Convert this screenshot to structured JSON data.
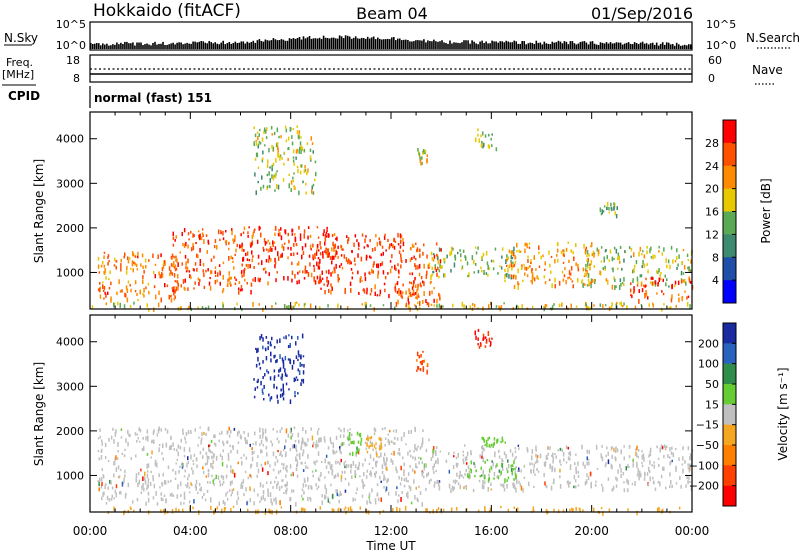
{
  "header": {
    "station": "Hokkaido (fitACF)",
    "beam": "Beam 04",
    "date": "01/Sep/2016"
  },
  "sky_panel": {
    "left_label": "N.Sky",
    "right_label": "N.Search",
    "left_ticks": [
      "10^5",
      "10^0"
    ],
    "right_ticks": [
      "10^5",
      "10^0"
    ]
  },
  "freq_panel": {
    "label_line1": "Freq.",
    "label_line2": "[MHz]",
    "right_label": "Nave",
    "left_ticks": [
      "18",
      "8"
    ],
    "right_ticks": [
      "60",
      "0"
    ]
  },
  "cpid": {
    "label": "CPID",
    "value": "normal (fast) 151"
  },
  "colors": {
    "power_scale": [
      "#0000ff",
      "#1f4fa8",
      "#3d8a70",
      "#5aaa55",
      "#e8c800",
      "#ff8c00",
      "#ff5000",
      "#ff0000"
    ],
    "velocity_scale": [
      "#1a2aa0",
      "#2a62c0",
      "#2f8f4a",
      "#66cc33",
      "#c0c0c0",
      "#f5a623",
      "#ff7f00",
      "#ff4000",
      "#ff0000"
    ]
  },
  "chart_data": [
    {
      "type": "heatmap",
      "name": "power",
      "ylabel": "Slant Range [km]",
      "ylim": [
        180,
        4600
      ],
      "yticks": [
        "1000",
        "2000",
        "3000",
        "4000"
      ],
      "ytick_values": [
        1000,
        2000,
        3000,
        4000
      ],
      "colorbar_label": "Power [dB]",
      "colorbar_ticks": [
        "4",
        "8",
        "12",
        "16",
        "20",
        "24",
        "28"
      ],
      "colorbar_range": [
        0,
        32
      ],
      "x_ticks": [
        "00:00",
        "04:00",
        "08:00",
        "12:00",
        "16:00",
        "20:00",
        "00:00"
      ],
      "xlim_hours": [
        0,
        24
      ],
      "regions": [
        {
          "t0": 0.0,
          "t1": 24.0,
          "r0": 200,
          "r1": 350,
          "level": 18
        },
        {
          "t0": 0.3,
          "t1": 3.5,
          "r0": 400,
          "r1": 1500,
          "level": 24
        },
        {
          "t0": 3.2,
          "t1": 6.5,
          "r0": 600,
          "r1": 2000,
          "level": 26
        },
        {
          "t0": 6.0,
          "t1": 9.5,
          "r0": 800,
          "r1": 2050,
          "level": 28
        },
        {
          "t0": 9.0,
          "t1": 12.5,
          "r0": 500,
          "r1": 1900,
          "level": 28
        },
        {
          "t0": 12.0,
          "t1": 14.0,
          "r0": 300,
          "r1": 1700,
          "level": 25
        },
        {
          "t0": 13.5,
          "t1": 17.0,
          "r0": 900,
          "r1": 1600,
          "level": 14
        },
        {
          "t0": 16.5,
          "t1": 20.0,
          "r0": 700,
          "r1": 1700,
          "level": 22
        },
        {
          "t0": 19.5,
          "t1": 24.0,
          "r0": 700,
          "r1": 1600,
          "level": 16
        },
        {
          "t0": 21.5,
          "t1": 24.0,
          "r0": 400,
          "r1": 900,
          "level": 26
        },
        {
          "t0": 6.5,
          "t1": 9.0,
          "r0": 2800,
          "r1": 4300,
          "level": 16
        },
        {
          "t0": 13.0,
          "t1": 13.5,
          "r0": 3400,
          "r1": 3800,
          "level": 18
        },
        {
          "t0": 15.3,
          "t1": 16.2,
          "r0": 3800,
          "r1": 4300,
          "level": 16
        },
        {
          "t0": 20.3,
          "t1": 21.0,
          "r0": 2300,
          "r1": 2600,
          "level": 14
        }
      ]
    },
    {
      "type": "heatmap",
      "name": "velocity",
      "ylabel": "Slant Range [km]",
      "ylim": [
        180,
        4600
      ],
      "yticks": [
        "1000",
        "2000",
        "3000",
        "4000"
      ],
      "ytick_values": [
        1000,
        2000,
        3000,
        4000
      ],
      "colorbar_label": "Velocity [m s⁻¹]",
      "colorbar_ticks": [
        "200",
        "100",
        "50",
        "15",
        "−15",
        "−50",
        "−100",
        "−200"
      ],
      "colorbar_range": [
        -250,
        250
      ],
      "x_ticks": [
        "00:00",
        "04:00",
        "08:00",
        "12:00",
        "16:00",
        "20:00",
        "00:00"
      ],
      "xlim_hours": [
        0,
        24
      ],
      "xlabel": "Time UT",
      "regions": [
        {
          "t0": 0.0,
          "t1": 24.0,
          "r0": 200,
          "r1": 320,
          "level": -60
        },
        {
          "t0": 0.3,
          "t1": 13.5,
          "r0": 400,
          "r1": 2100,
          "level": 0
        },
        {
          "t0": 13.5,
          "t1": 24.0,
          "r0": 700,
          "r1": 1700,
          "level": 0
        },
        {
          "t0": 10.2,
          "t1": 10.8,
          "r0": 1500,
          "r1": 2000,
          "level": 60
        },
        {
          "t0": 11.0,
          "t1": 11.6,
          "r0": 1500,
          "r1": 1900,
          "level": -60
        },
        {
          "t0": 15.0,
          "t1": 17.0,
          "r0": 900,
          "r1": 1400,
          "level": 70
        },
        {
          "t0": 15.5,
          "t1": 16.8,
          "r0": 1700,
          "r1": 1900,
          "level": 60
        },
        {
          "t0": 6.5,
          "t1": 8.5,
          "r0": 2700,
          "r1": 4200,
          "level": 210
        },
        {
          "t0": 13.0,
          "t1": 13.5,
          "r0": 3300,
          "r1": 3800,
          "level": -150
        },
        {
          "t0": 15.3,
          "t1": 16.0,
          "r0": 3900,
          "r1": 4300,
          "level": -200
        }
      ]
    }
  ]
}
